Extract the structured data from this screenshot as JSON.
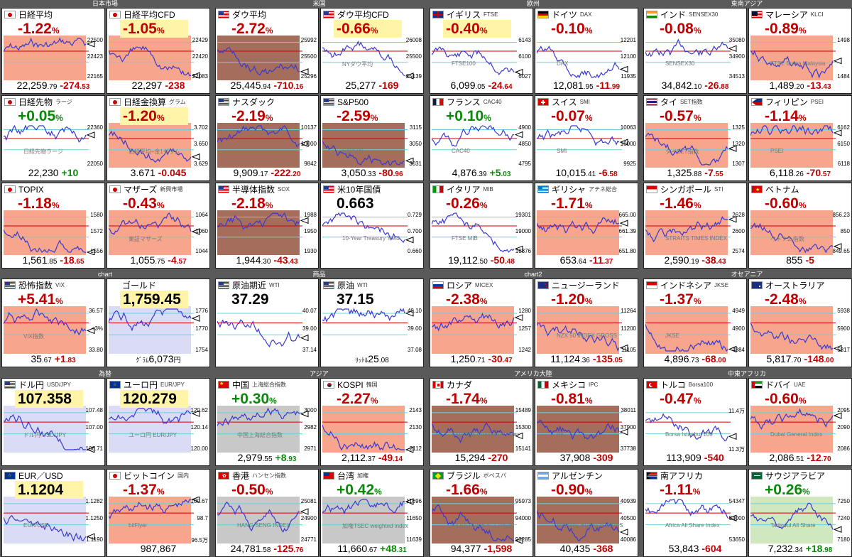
{
  "groups": [
    {
      "label": "日本市場",
      "col": 0,
      "row": 0
    },
    {
      "label": "米国",
      "col": 1,
      "row": 0
    },
    {
      "label": "欧州",
      "col": 2,
      "row": 0
    },
    {
      "label": "東南アジア",
      "col": 3,
      "row": 0
    },
    {
      "label": "chart",
      "col": 0,
      "row": 1
    },
    {
      "label": "商品",
      "col": 1,
      "row": 1
    },
    {
      "label": "chart2",
      "col": 2,
      "row": 1
    },
    {
      "label": "オセアニア",
      "col": 3,
      "row": 1
    },
    {
      "label": "為替",
      "col": 0,
      "row": 2
    },
    {
      "label": "アジア",
      "col": 1,
      "row": 2
    },
    {
      "label": "アメリカ大陸",
      "col": 2,
      "row": 2
    },
    {
      "label": "中東アフリカ",
      "col": 3,
      "row": 2
    }
  ],
  "panels": [
    {
      "id": "nikkei",
      "flag": "jp",
      "name": "日経平均",
      "sub": "",
      "pct": "-1.22",
      "unit": "%",
      "val_i": "22,259",
      "val_d": ".79",
      "chg_i": "-274",
      "chg_d": ".53",
      "dir": "dn",
      "hl": false,
      "shade": "red",
      "axis": [
        "22500",
        "22423",
        "22165"
      ],
      "label": ""
    },
    {
      "id": "nikkei-cfd",
      "flag": "jp",
      "name": "日経平均CFD",
      "sub": "",
      "pct": "-1.05",
      "unit": "%",
      "val_i": "22,297",
      "val_d": "",
      "chg_i": "-238",
      "chg_d": "",
      "dir": "dn",
      "hl": true,
      "shade": "red",
      "axis": [
        "22429",
        "22420",
        "22083"
      ],
      "label": ""
    },
    {
      "id": "dow",
      "flag": "us",
      "name": "ダウ平均",
      "sub": "",
      "pct": "-2.72",
      "unit": "%",
      "val_i": "25,445",
      "val_d": ".94",
      "chg_i": "-710",
      "chg_d": ".16",
      "dir": "dn",
      "hl": false,
      "shade": "brown",
      "axis": [
        "25992",
        "25500",
        "25296"
      ],
      "label": ""
    },
    {
      "id": "dow-cfd",
      "flag": "us",
      "name": "ダウ平均CFD",
      "sub": "",
      "pct": "-0.66",
      "unit": "%",
      "val_i": "25,277",
      "val_d": "",
      "chg_i": "-169",
      "chg_d": "",
      "dir": "dn",
      "hl": true,
      "shade": "none",
      "axis": [
        "26008",
        "25500",
        "25139"
      ],
      "label": "NYダウ平均"
    },
    {
      "id": "ftse",
      "flag": "gb",
      "name": "イギリス",
      "sub": "FTSE",
      "pct": "-0.40",
      "unit": "%",
      "val_i": "6,099",
      "val_d": ".05",
      "chg_i": "-24",
      "chg_d": ".64",
      "dir": "dn",
      "hl": true,
      "shade": "none",
      "axis": [
        "6143",
        "6100",
        "6027"
      ],
      "label": "FTSE100"
    },
    {
      "id": "dax",
      "flag": "de",
      "name": "ドイツ",
      "sub": "DAX",
      "pct": "-0.10",
      "unit": "%",
      "val_i": "12,081",
      "val_d": ".95",
      "chg_i": "-11",
      "chg_d": ".99",
      "dir": "dn",
      "hl": false,
      "shade": "none",
      "axis": [
        "12201",
        "12100",
        "11935"
      ],
      "label": "DAX"
    },
    {
      "id": "sensex",
      "flag": "in",
      "name": "インド",
      "sub": "SENSEX30",
      "pct": "-0.08",
      "unit": "%",
      "val_i": "34,842",
      "val_d": ".10",
      "chg_i": "-26",
      "chg_d": ".88",
      "dir": "dn",
      "hl": false,
      "shade": "none",
      "axis": [
        "35080",
        "34900",
        "34513"
      ],
      "label": "SENSEX30"
    },
    {
      "id": "klci",
      "flag": "my",
      "name": "マレーシア",
      "sub": "KLCI",
      "pct": "-0.89",
      "unit": "%",
      "val_i": "1,489",
      "val_d": ".20",
      "chg_i": "-13",
      "chg_d": ".43",
      "dir": "dn",
      "hl": false,
      "shade": "red",
      "axis": [
        "1498",
        "",
        "1484"
      ],
      "label": "FTSE Bursa Malaysia"
    },
    {
      "id": "nikkei-fut",
      "flag": "jp",
      "name": "日経先物",
      "sub": "ラージ",
      "pct": "+0.05",
      "unit": "%",
      "val_i": "22,230",
      "val_d": "",
      "chg_i": "+10",
      "chg_d": "",
      "dir": "up",
      "hl": false,
      "shade": "none",
      "axis": [
        "22360",
        "",
        "22050"
      ],
      "label": "日経先物ラージ"
    },
    {
      "id": "nikkei-gram",
      "flag": "jp",
      "name": "日経金換算",
      "sub": "グラム",
      "pct": "-1.20",
      "unit": "%",
      "val_i": "3.671",
      "val_d": "",
      "chg_i": "-0.045",
      "chg_d": "",
      "dir": "dn",
      "hl": true,
      "shade": "red",
      "axis": [
        "3.702",
        "3.650",
        "3.629"
      ],
      "label": "日経平均÷金1グラム"
    },
    {
      "id": "nasdaq",
      "flag": "us",
      "name": "ナスダック",
      "sub": "",
      "pct": "-2.19",
      "unit": "%",
      "val_i": "9,909",
      "val_d": ".17",
      "chg_i": "-222",
      "chg_d": ".20",
      "dir": "dn",
      "hl": false,
      "shade": "brown",
      "axis": [
        "10137",
        "10000",
        "9842"
      ],
      "label": ""
    },
    {
      "id": "sp500",
      "flag": "us",
      "name": "S&P500",
      "sub": "",
      "pct": "-2.59",
      "unit": "%",
      "val_i": "3,050",
      "val_d": ".33",
      "chg_i": "-80",
      "chg_d": ".96",
      "dir": "dn",
      "hl": false,
      "shade": "brown",
      "axis": [
        "3115",
        "3050",
        "3031"
      ],
      "label": "S&P500"
    },
    {
      "id": "cac40",
      "flag": "fr",
      "name": "フランス",
      "sub": "CAC40",
      "pct": "+0.10",
      "unit": "%",
      "val_i": "4,876",
      "val_d": ".39",
      "chg_i": "+5",
      "chg_d": ".03",
      "dir": "up",
      "hl": false,
      "shade": "none",
      "axis": [
        "4900",
        "4850",
        "4795"
      ],
      "label": "CAC40"
    },
    {
      "id": "smi",
      "flag": "ch",
      "name": "スイス",
      "sub": "SMI",
      "pct": "-0.07",
      "unit": "%",
      "val_i": "10,015",
      "val_d": ".41",
      "chg_i": "-6",
      "chg_d": ".58",
      "dir": "dn",
      "hl": false,
      "shade": "none",
      "axis": [
        "10063",
        "10000",
        "9925"
      ],
      "label": "SMI"
    },
    {
      "id": "set",
      "flag": "th",
      "name": "タイ",
      "sub": "SET指数",
      "pct": "-0.57",
      "unit": "%",
      "val_i": "1,325",
      "val_d": ".88",
      "chg_i": "-7",
      "chg_d": ".55",
      "dir": "dn",
      "hl": false,
      "shade": "red",
      "axis": [
        "1325",
        "1320",
        "1307"
      ],
      "label": "タイSET指数"
    },
    {
      "id": "psei",
      "flag": "ph",
      "name": "フィリピン",
      "sub": "PSEI",
      "pct": "-1.14",
      "unit": "%",
      "val_i": "6,118",
      "val_d": ".26",
      "chg_i": "-70",
      "chg_d": ".57",
      "dir": "dn",
      "hl": false,
      "shade": "red",
      "axis": [
        "6162",
        "6150",
        "6118"
      ],
      "label": "PSEI"
    },
    {
      "id": "topix",
      "flag": "jp",
      "name": "TOPIX",
      "sub": "",
      "pct": "-1.18",
      "unit": "%",
      "val_i": "1,561",
      "val_d": ".85",
      "chg_i": "-18",
      "chg_d": ".65",
      "dir": "dn",
      "hl": false,
      "shade": "red",
      "axis": [
        "1580",
        "1572",
        "1556"
      ],
      "label": ""
    },
    {
      "id": "mothers",
      "flag": "jp",
      "name": "マザーズ",
      "sub": "新興市場",
      "pct": "-0.43",
      "unit": "%",
      "val_i": "1,055",
      "val_d": ".75",
      "chg_i": "-4",
      "chg_d": ".57",
      "dir": "dn",
      "hl": false,
      "shade": "red",
      "axis": [
        "1064",
        "1060",
        "1044"
      ],
      "label": "東証マザーズ"
    },
    {
      "id": "sox",
      "flag": "us",
      "name": "半導体指数",
      "sub": "SOX",
      "pct": "-2.18",
      "unit": "%",
      "val_i": "1,944",
      "val_d": ".30",
      "chg_i": "-43",
      "chg_d": ".43",
      "dir": "dn",
      "hl": false,
      "shade": "brown",
      "axis": [
        "1988",
        "1950",
        "1930"
      ],
      "label": ""
    },
    {
      "id": "us10y",
      "flag": "us",
      "name": "米10年国債",
      "sub": "",
      "pct": "0.663",
      "unit": "",
      "val_i": "",
      "val_d": "",
      "chg_i": "",
      "chg_d": "",
      "dir": "flat",
      "hl": false,
      "shade": "none",
      "axis": [
        "0.729",
        "0.700",
        "0.660"
      ],
      "label": "10-Year Treasury Yield"
    },
    {
      "id": "mib",
      "flag": "it",
      "name": "イタリア",
      "sub": "MIB",
      "pct": "-0.26",
      "unit": "%",
      "val_i": "19,112",
      "val_d": ".50",
      "chg_i": "-50",
      "chg_d": ".48",
      "dir": "dn",
      "hl": false,
      "shade": "none",
      "axis": [
        "19301",
        "19000",
        "18876"
      ],
      "label": "FTSE MIB"
    },
    {
      "id": "athens",
      "flag": "gr",
      "name": "ギリシャ",
      "sub": "アテネ総合",
      "pct": "-1.71",
      "unit": "%",
      "val_i": "653",
      "val_d": ".64",
      "chg_i": "-11",
      "chg_d": ".37",
      "dir": "dn",
      "hl": false,
      "shade": "red",
      "axis": [
        "665.00",
        "661.39",
        "651.80"
      ],
      "label": ""
    },
    {
      "id": "sti",
      "flag": "sg",
      "name": "シンガポール",
      "sub": "STI",
      "pct": "-1.46",
      "unit": "%",
      "val_i": "2,590",
      "val_d": ".19",
      "chg_i": "-38",
      "chg_d": ".43",
      "dir": "dn",
      "hl": false,
      "shade": "red",
      "axis": [
        "2628",
        "2600",
        "2574"
      ],
      "label": "STRAITS TIMES INDEX"
    },
    {
      "id": "vn",
      "flag": "vn",
      "name": "ベトナム",
      "sub": "",
      "pct": "-0.60",
      "unit": "%",
      "val_i": "855",
      "val_d": "",
      "chg_i": "-5",
      "chg_d": "",
      "dir": "dn",
      "hl": false,
      "shade": "red",
      "axis": [
        "856.23",
        "850",
        "849.65"
      ],
      "label": "ベトナム指数"
    },
    {
      "id": "vix",
      "flag": "us",
      "name": "恐怖指数",
      "sub": "VIX",
      "pct": "+5.41",
      "unit": "%",
      "val_i": "35",
      "val_d": ".67",
      "chg_i": "+1",
      "chg_d": ".83",
      "dir": "up2",
      "hl": false,
      "shade": "red",
      "axis": [
        "36.57",
        "+3%",
        "33.80"
      ],
      "label": "VIX指数"
    },
    {
      "id": "gold",
      "flag": "",
      "name": "ゴールド",
      "sub": "",
      "pct": "1,759.45",
      "unit": "",
      "val_i": "6,073",
      "val_d": "円",
      "chg_i": "",
      "chg_d": "",
      "dir": "flat",
      "hl": true,
      "shade": "blue",
      "axis": [
        "1776",
        "1770",
        "1754"
      ],
      "label": "",
      "prefix": "ｸﾞﾗﾑ"
    },
    {
      "id": "wti",
      "flag": "us",
      "name": "原油期近",
      "sub": "WTI",
      "pct": "37.29",
      "unit": "",
      "val_i": "",
      "val_d": "",
      "chg_i": "",
      "chg_d": "",
      "dir": "flat",
      "hl": false,
      "shade": "none",
      "axis": [
        "40.07",
        "39.00",
        "37.14"
      ],
      "label": ""
    },
    {
      "id": "wti2",
      "flag": "us",
      "name": "原油",
      "sub": "WTI",
      "pct": "37.15",
      "unit": "",
      "val_i": "25",
      "val_d": ".08",
      "chg_i": "",
      "chg_d": "",
      "dir": "flat",
      "hl": false,
      "shade": "none",
      "axis": [
        "40.10",
        "39.00",
        "37.08"
      ],
      "label": "",
      "prefix": "ﾘｯﾄﾙ"
    },
    {
      "id": "micex",
      "flag": "ru",
      "name": "ロシア",
      "sub": "MICEX",
      "pct": "-2.38",
      "unit": "%",
      "val_i": "1,250",
      "val_d": ".71",
      "chg_i": "-30",
      "chg_d": ".47",
      "dir": "dn",
      "hl": false,
      "shade": "red",
      "axis": [
        "1280",
        "1257",
        "1242"
      ],
      "label": ""
    },
    {
      "id": "nz",
      "flag": "nz",
      "name": "ニュージーランド",
      "sub": "",
      "pct": "-1.20",
      "unit": "%",
      "val_i": "11,124",
      "val_d": ".36",
      "chg_i": "-135",
      "chg_d": ".05",
      "dir": "dn",
      "hl": false,
      "shade": "red",
      "axis": [
        "11264",
        "11200",
        "11105"
      ],
      "label": "NZX 50 INDEX GROSS"
    },
    {
      "id": "jkse",
      "flag": "id",
      "name": "インドネシア",
      "sub": "JKSE",
      "pct": "-1.37",
      "unit": "%",
      "val_i": "4,896",
      "val_d": ".73",
      "chg_i": "-68",
      "chg_d": ".00",
      "dir": "dn",
      "hl": false,
      "shade": "red",
      "axis": [
        "4949",
        "4900",
        "4884"
      ],
      "label": "JKSE"
    },
    {
      "id": "aus",
      "flag": "au",
      "name": "オーストラリア",
      "sub": "",
      "pct": "-2.48",
      "unit": "%",
      "val_i": "5,817",
      "val_d": ".70",
      "chg_i": "-148",
      "chg_d": ".00",
      "dir": "dn",
      "hl": false,
      "shade": "red",
      "axis": [
        "5938",
        "5900",
        "5817"
      ],
      "label": ""
    },
    {
      "id": "usdjpy",
      "flag": "us",
      "name": "ドル円",
      "sub": "USD/JPY",
      "pct": "107.358",
      "unit": "",
      "val_i": "",
      "val_d": "",
      "chg_i": "",
      "chg_d": "",
      "dir": "flat",
      "hl": true,
      "shade": "blue",
      "axis": [
        "107.48",
        "107.00",
        "106.71"
      ],
      "label": "ドル円 USD/JPY"
    },
    {
      "id": "eurjpy",
      "flag": "eu",
      "name": "ユーロ円",
      "sub": "EUR/JPY",
      "pct": "120.279",
      "unit": "",
      "val_i": "",
      "val_d": "",
      "chg_i": "",
      "chg_d": "",
      "dir": "flat",
      "hl": true,
      "shade": "blue",
      "axis": [
        "120.62",
        "120.14",
        "120.00"
      ],
      "label": "ユーロ円 EUR/JPY"
    },
    {
      "id": "shanghai",
      "flag": "cn",
      "name": "中国",
      "sub": "上海総合指数",
      "pct": "+0.30",
      "unit": "%",
      "val_i": "2,979",
      "val_d": ".55",
      "chg_i": "+8",
      "chg_d": ".93",
      "dir": "up",
      "hl": false,
      "shade": "gray",
      "axis": [
        "3000",
        "2982",
        "2971"
      ],
      "label": "中国上海総合指数"
    },
    {
      "id": "kospi",
      "flag": "kr",
      "name": "KOSPI",
      "sub": "韓国",
      "pct": "-2.27",
      "unit": "%",
      "val_i": "2,112",
      "val_d": ".37",
      "chg_i": "-49",
      "chg_d": ".14",
      "dir": "dn",
      "hl": false,
      "shade": "red",
      "axis": [
        "2143",
        "2130",
        "2112"
      ],
      "label": ""
    },
    {
      "id": "tsx",
      "flag": "ca",
      "name": "カナダ",
      "sub": "",
      "pct": "-1.74",
      "unit": "%",
      "val_i": "15,294",
      "val_d": "",
      "chg_i": "-270",
      "chg_d": "",
      "dir": "dn",
      "hl": false,
      "shade": "brown",
      "axis": [
        "15489",
        "15300",
        "15141"
      ],
      "label": "S&P/TSX Composite index"
    },
    {
      "id": "ipc",
      "flag": "mx",
      "name": "メキシコ",
      "sub": "IPC",
      "pct": "-0.81",
      "unit": "%",
      "val_i": "37,908",
      "val_d": "",
      "chg_i": "-309",
      "chg_d": "",
      "dir": "dn",
      "hl": false,
      "shade": "brown",
      "axis": [
        "38011",
        "37900",
        "37738"
      ],
      "label": "IPC"
    },
    {
      "id": "bist",
      "flag": "tr",
      "name": "トルコ",
      "sub": "Borsa100",
      "pct": "-0.47",
      "unit": "%",
      "val_i": "113,909",
      "val_d": "",
      "chg_i": "-540",
      "chg_d": "",
      "dir": "dn",
      "hl": false,
      "shade": "none",
      "axis": [
        "11.4万",
        "",
        "11.3万"
      ],
      "label": "Borsa Istanbul 100"
    },
    {
      "id": "dfm",
      "flag": "ae",
      "name": "ドバイ",
      "sub": "UAE",
      "pct": "-0.60",
      "unit": "%",
      "val_i": "2,086",
      "val_d": ".51",
      "chg_i": "-12",
      "chg_d": ".70",
      "dir": "dn",
      "hl": false,
      "shade": "red",
      "axis": [
        "2095",
        "2090",
        "2086"
      ],
      "label": "Dubai General Index"
    },
    {
      "id": "eurusd",
      "flag": "eu",
      "name": "EUR／USD",
      "sub": "",
      "pct": "1.1204",
      "unit": "",
      "val_i": "",
      "val_d": "",
      "chg_i": "",
      "chg_d": "",
      "dir": "flat",
      "hl": true,
      "shade": "blue",
      "axis": [
        "1.1282",
        "1.1250",
        "1.1190"
      ],
      "label": "EUR/USD"
    },
    {
      "id": "btc",
      "flag": "jp",
      "name": "ビットコイン",
      "sub": "国内",
      "pct": "-1.37",
      "unit": "%",
      "val_i": "987,867",
      "val_d": "",
      "chg_i": "",
      "chg_d": "",
      "dir": "dn",
      "hl": false,
      "shade": "red",
      "axis": [
        "100.67",
        "98.7",
        "96.5万"
      ],
      "label": "bitFlyer"
    },
    {
      "id": "hsi",
      "flag": "hk",
      "name": "香港",
      "sub": "ハンセン指数",
      "pct": "-0.50",
      "unit": "%",
      "val_i": "24,781",
      "val_d": ".58",
      "chg_i": "-125",
      "chg_d": ".76",
      "dir": "dn",
      "hl": false,
      "shade": "gray",
      "axis": [
        "25081",
        "24900",
        "24771"
      ],
      "label": "HANG SENG INDEX"
    },
    {
      "id": "twse",
      "flag": "tw",
      "name": "台湾",
      "sub": "加権",
      "pct": "+0.42",
      "unit": "%",
      "val_i": "11,660",
      "val_d": ".67",
      "chg_i": "+48",
      "chg_d": ".31",
      "dir": "up",
      "hl": false,
      "shade": "gray",
      "axis": [
        "11696",
        "11650",
        "11639"
      ],
      "label": "加権TSEC weighted index"
    },
    {
      "id": "bovespa",
      "flag": "br",
      "name": "ブラジル",
      "sub": "ボベスパ",
      "pct": "-1.66",
      "unit": "%",
      "val_i": "94,377",
      "val_d": "",
      "chg_i": "-1,598",
      "chg_d": "",
      "dir": "dn",
      "hl": false,
      "shade": "brown",
      "axis": [
        "95973",
        "94000",
        "93285"
      ],
      "label": "IBOVESPAボベスパ指数"
    },
    {
      "id": "merval",
      "flag": "ar",
      "name": "アルゼンチン",
      "sub": "",
      "pct": "-0.90",
      "unit": "%",
      "val_i": "40,435",
      "val_d": "",
      "chg_i": "-368",
      "chg_d": "",
      "dir": "dn",
      "hl": false,
      "shade": "brown",
      "axis": [
        "40939",
        "40500",
        "40086"
      ],
      "label": "MERVAL BUENOS AIRES"
    },
    {
      "id": "jse",
      "flag": "za",
      "name": "南アフリカ",
      "sub": "",
      "pct": "-1.11",
      "unit": "%",
      "val_i": "53,843",
      "val_d": "",
      "chg_i": "-604",
      "chg_d": "",
      "dir": "dn",
      "hl": false,
      "shade": "none",
      "axis": [
        "54347",
        "54000",
        "53650"
      ],
      "label": "Africa All Share Index"
    },
    {
      "id": "tasi",
      "flag": "sa",
      "name": "サウジアラビア",
      "sub": "",
      "pct": "+0.26",
      "unit": "%",
      "val_i": "7,232",
      "val_d": ".34",
      "chg_i": "+18",
      "chg_d": ".98",
      "dir": "up",
      "hl": false,
      "shade": "green",
      "axis": [
        "7250",
        "7240",
        "7180"
      ],
      "label": "Tadawul All Share"
    }
  ],
  "colors": {
    "up": "#0a8a0a",
    "down": "#c00000",
    "line": "#3a3ad0",
    "shade_red": "#f7a58d",
    "shade_brown": "#a56e5c",
    "shade_gray": "#c8c8c8",
    "shade_blue": "#dadcf6",
    "hl": "#fff4a8"
  }
}
